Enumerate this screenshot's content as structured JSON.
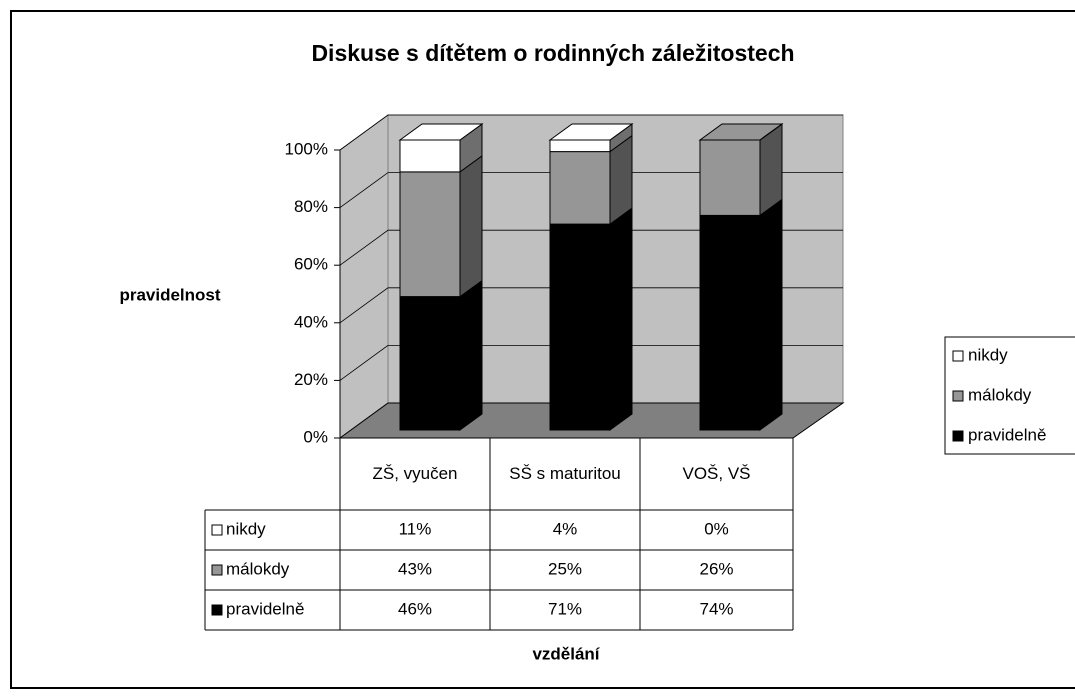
{
  "chart_data": {
    "type": "bar3d_stacked",
    "title": "Diskuse s dítětem o rodinných záležitostech",
    "y_label": "pravidelnost",
    "x_label": "vzdělání",
    "categories": [
      "ZŠ, vyučen",
      "SŠ s maturitou",
      "VOŠ, VŠ"
    ],
    "series": [
      {
        "name": "pravidelně",
        "color": "#000000",
        "values": [
          46,
          71,
          74
        ],
        "value_labels": [
          "46%",
          "71%",
          "74%"
        ]
      },
      {
        "name": "málokdy",
        "color": "#969696",
        "values": [
          43,
          25,
          26
        ],
        "value_labels": [
          "43%",
          "25%",
          "26%"
        ]
      },
      {
        "name": "nikdy",
        "color": "#ffffff",
        "values": [
          11,
          4,
          0
        ],
        "value_labels": [
          "11%",
          "4%",
          "0%"
        ]
      }
    ],
    "ylim": [
      0,
      100
    ],
    "yticks": [
      {
        "value": 0,
        "label": "0%"
      },
      {
        "value": 20,
        "label": "20%"
      },
      {
        "value": 40,
        "label": "40%"
      },
      {
        "value": 60,
        "label": "60%"
      },
      {
        "value": 80,
        "label": "80%"
      },
      {
        "value": 100,
        "label": "100%"
      }
    ],
    "grid": true
  }
}
